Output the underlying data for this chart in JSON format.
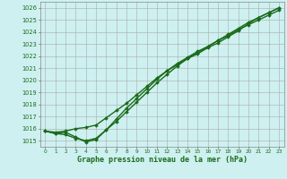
{
  "title": "Graphe pression niveau de la mer (hPa)",
  "bg_color": "#cef0f0",
  "grid_color": "#aaaaaa",
  "line_color": "#1a6b1a",
  "marker_color": "#1a6b1a",
  "xlim": [
    -0.5,
    23.5
  ],
  "ylim": [
    1014.5,
    1026.5
  ],
  "yticks": [
    1015,
    1016,
    1017,
    1018,
    1019,
    1020,
    1021,
    1022,
    1023,
    1024,
    1025,
    1026
  ],
  "xticks": [
    0,
    1,
    2,
    3,
    4,
    5,
    6,
    7,
    8,
    9,
    10,
    11,
    12,
    13,
    14,
    15,
    16,
    17,
    18,
    19,
    20,
    21,
    22,
    23
  ],
  "series": [
    {
      "x": [
        0,
        1,
        2,
        3,
        4,
        5,
        6,
        7,
        8,
        9,
        10,
        11,
        12,
        13,
        14,
        15,
        16,
        17,
        18,
        19,
        20,
        21,
        22,
        23
      ],
      "y": [
        1015.8,
        1015.7,
        1015.8,
        1016.0,
        1016.1,
        1016.3,
        1016.9,
        1017.5,
        1018.1,
        1018.8,
        1019.5,
        1020.2,
        1020.8,
        1021.3,
        1021.8,
        1022.2,
        1022.7,
        1023.1,
        1023.6,
        1024.1,
        1024.7,
        1025.2,
        1025.6,
        1026.0
      ],
      "marker": "D",
      "linewidth": 1.0
    },
    {
      "x": [
        0,
        1,
        2,
        3,
        4,
        5,
        6,
        7,
        8,
        9,
        10,
        11,
        12,
        13,
        14,
        15,
        16,
        17,
        18,
        19,
        20,
        21,
        22,
        23
      ],
      "y": [
        1015.8,
        1015.6,
        1015.5,
        1015.2,
        1015.0,
        1015.2,
        1015.9,
        1016.6,
        1017.4,
        1018.2,
        1019.0,
        1019.8,
        1020.5,
        1021.2,
        1021.8,
        1022.3,
        1022.8,
        1023.3,
        1023.8,
        1024.3,
        1024.8,
        1025.2,
        1025.6,
        1026.0
      ],
      "marker": "D",
      "linewidth": 1.0
    },
    {
      "x": [
        0,
        1,
        2,
        3,
        4,
        5,
        6,
        7,
        8,
        9,
        10,
        11,
        12,
        13,
        14,
        15,
        16,
        17,
        18,
        19,
        20,
        21,
        22,
        23
      ],
      "y": [
        1015.8,
        1015.6,
        1015.7,
        1015.3,
        1014.9,
        1015.1,
        1015.9,
        1016.8,
        1017.7,
        1018.5,
        1019.3,
        1020.1,
        1020.8,
        1021.4,
        1021.9,
        1022.4,
        1022.8,
        1023.3,
        1023.7,
        1024.2,
        1024.6,
        1025.0,
        1025.4,
        1025.8
      ],
      "marker": "D",
      "linewidth": 1.0
    }
  ]
}
